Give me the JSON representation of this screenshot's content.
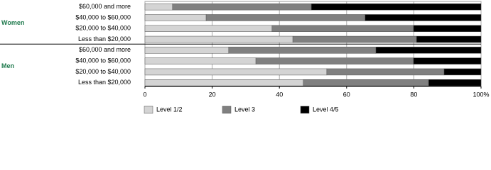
{
  "chart_data": {
    "type": "stacked-bar",
    "orientation": "horizontal",
    "xlim": [
      0,
      100
    ],
    "xticks": [
      0,
      20,
      40,
      60,
      80,
      {
        "value": 100,
        "label": "100%"
      }
    ],
    "grid": true,
    "series": [
      {
        "name": "Level 1/2",
        "color": "#d4d4d4"
      },
      {
        "name": "Level 3",
        "color": "#808080"
      },
      {
        "name": "Level 4/5",
        "color": "#000000"
      }
    ],
    "groups": [
      {
        "name": "Women",
        "categories": [
          "$60,000 and more",
          "$40,000 to $60,000",
          "$20,000 to $40,000",
          "Less than $20,000"
        ],
        "series": [
          {
            "values": [
              8.2,
              18.2,
              37.8,
              44.0
            ]
          },
          {
            "values": [
              41.3,
              47.3,
              42.1,
              36.8
            ]
          },
          {
            "values": [
              50.5,
              34.5,
              20.1,
              19.2
            ]
          }
        ]
      },
      {
        "name": "Men",
        "categories": [
          "$60,000 and more",
          "$40,000 to $60,000",
          "$20,000 to $40,000",
          "Less than $20,000"
        ],
        "series": [
          {
            "values": [
              24.9,
              33.0,
              54.1,
              47.1
            ]
          },
          {
            "values": [
              43.8,
              46.9,
              34.9,
              37.3
            ]
          },
          {
            "values": [
              31.3,
              20.1,
              11.0,
              15.6
            ]
          }
        ]
      }
    ]
  }
}
